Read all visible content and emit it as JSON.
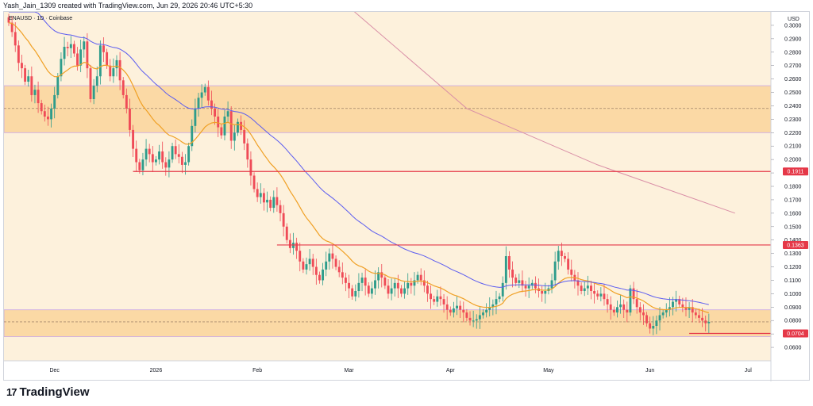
{
  "header": {
    "caption": "Yash_Jain_1309 created with TradingView.com, Jun 29, 2026 20:46 UTC+5:30"
  },
  "symbol_label": "ENAUSD · 1D · Coinbase",
  "currency_label": "USD",
  "footer": {
    "brand": "TradingView",
    "logo_mark": "17"
  },
  "colors": {
    "background": "#fdf1dc",
    "zone_fill": "#fbd9a5",
    "up_candle": "#2e9c8b",
    "down_candle": "#ef4b57",
    "ema_fast": "#f0a024",
    "ema_mid": "#5b5cf0",
    "ema_slow": "#d98ea6",
    "level_line": "#e53848",
    "zone_border": "#c8a7e8"
  },
  "chart_data": {
    "type": "candlestick",
    "y_axis": {
      "min": 0.05,
      "max": 0.31,
      "scale": "linear",
      "ticks": [
        "0.3000",
        "0.2900",
        "0.2800",
        "0.2700",
        "0.2600",
        "0.2500",
        "0.2400",
        "0.2300",
        "0.2200",
        "0.2100",
        "0.2000",
        "0.1900",
        "0.1800",
        "0.1700",
        "0.1600",
        "0.1500",
        "0.1400",
        "0.1300",
        "0.1200",
        "0.1100",
        "0.1000",
        "0.0900",
        "0.0800",
        "0.0700",
        "0.0600"
      ]
    },
    "x_axis": {
      "labels": [
        {
          "label": "Dec",
          "index": 14
        },
        {
          "label": "2026",
          "index": 45
        },
        {
          "label": "Feb",
          "index": 76
        },
        {
          "label": "Mar",
          "index": 104
        },
        {
          "label": "Apr",
          "index": 135
        },
        {
          "label": "May",
          "index": 165
        },
        {
          "label": "Jun",
          "index": 196
        },
        {
          "label": "Jul",
          "index": 226
        }
      ],
      "total_bars": 232
    },
    "zones": [
      {
        "top": 0.255,
        "bottom": 0.22,
        "mid": 0.238
      },
      {
        "top": 0.088,
        "bottom": 0.068,
        "mid": 0.079
      }
    ],
    "levels": [
      {
        "value": 0.1911,
        "label": "0.1911",
        "from_index": 38
      },
      {
        "value": 0.1363,
        "label": "0.1363",
        "from_index": 82
      },
      {
        "value": 0.0704,
        "label": "0.0704",
        "from_index": 208
      }
    ],
    "closes": [
      0.302,
      0.295,
      0.285,
      0.272,
      0.268,
      0.258,
      0.262,
      0.248,
      0.252,
      0.242,
      0.236,
      0.232,
      0.23,
      0.238,
      0.248,
      0.262,
      0.275,
      0.284,
      0.283,
      0.286,
      0.279,
      0.27,
      0.282,
      0.288,
      0.268,
      0.245,
      0.255,
      0.262,
      0.285,
      0.28,
      0.27,
      0.262,
      0.268,
      0.274,
      0.259,
      0.248,
      0.238,
      0.222,
      0.208,
      0.198,
      0.192,
      0.2,
      0.208,
      0.204,
      0.198,
      0.2,
      0.206,
      0.198,
      0.194,
      0.2,
      0.21,
      0.204,
      0.202,
      0.196,
      0.198,
      0.21,
      0.225,
      0.238,
      0.246,
      0.25,
      0.254,
      0.244,
      0.238,
      0.232,
      0.224,
      0.218,
      0.232,
      0.236,
      0.214,
      0.22,
      0.228,
      0.222,
      0.212,
      0.2,
      0.188,
      0.178,
      0.172,
      0.175,
      0.168,
      0.17,
      0.164,
      0.172,
      0.166,
      0.16,
      0.15,
      0.14,
      0.134,
      0.138,
      0.132,
      0.124,
      0.118,
      0.122,
      0.126,
      0.12,
      0.114,
      0.11,
      0.118,
      0.124,
      0.13,
      0.126,
      0.12,
      0.116,
      0.112,
      0.108,
      0.104,
      0.098,
      0.102,
      0.108,
      0.112,
      0.106,
      0.1,
      0.104,
      0.11,
      0.116,
      0.112,
      0.106,
      0.1,
      0.104,
      0.108,
      0.104,
      0.1,
      0.104,
      0.108,
      0.106,
      0.11,
      0.114,
      0.11,
      0.106,
      0.1,
      0.096,
      0.094,
      0.098,
      0.096,
      0.092,
      0.088,
      0.086,
      0.089,
      0.091,
      0.088,
      0.086,
      0.082,
      0.08,
      0.08,
      0.081,
      0.084,
      0.086,
      0.088,
      0.09,
      0.092,
      0.096,
      0.098,
      0.108,
      0.128,
      0.118,
      0.112,
      0.108,
      0.11,
      0.106,
      0.104,
      0.106,
      0.108,
      0.104,
      0.102,
      0.1,
      0.102,
      0.104,
      0.11,
      0.124,
      0.132,
      0.128,
      0.126,
      0.118,
      0.114,
      0.11,
      0.106,
      0.102,
      0.104,
      0.106,
      0.102,
      0.1,
      0.098,
      0.1,
      0.096,
      0.092,
      0.088,
      0.086,
      0.09,
      0.092,
      0.088,
      0.086,
      0.104,
      0.096,
      0.09,
      0.086,
      0.084,
      0.078,
      0.074,
      0.076,
      0.08,
      0.084,
      0.086,
      0.088,
      0.09,
      0.094,
      0.096,
      0.092,
      0.09,
      0.088,
      0.09,
      0.086,
      0.084,
      0.082,
      0.08,
      0.078,
      0.079
    ],
    "ema_fast_note": "orange moving average",
    "ema_mid_start": 0.33,
    "ema_slow_points": [
      [
        100,
        0.322
      ],
      [
        140,
        0.238
      ],
      [
        180,
        0.196
      ],
      [
        222,
        0.16
      ]
    ]
  }
}
